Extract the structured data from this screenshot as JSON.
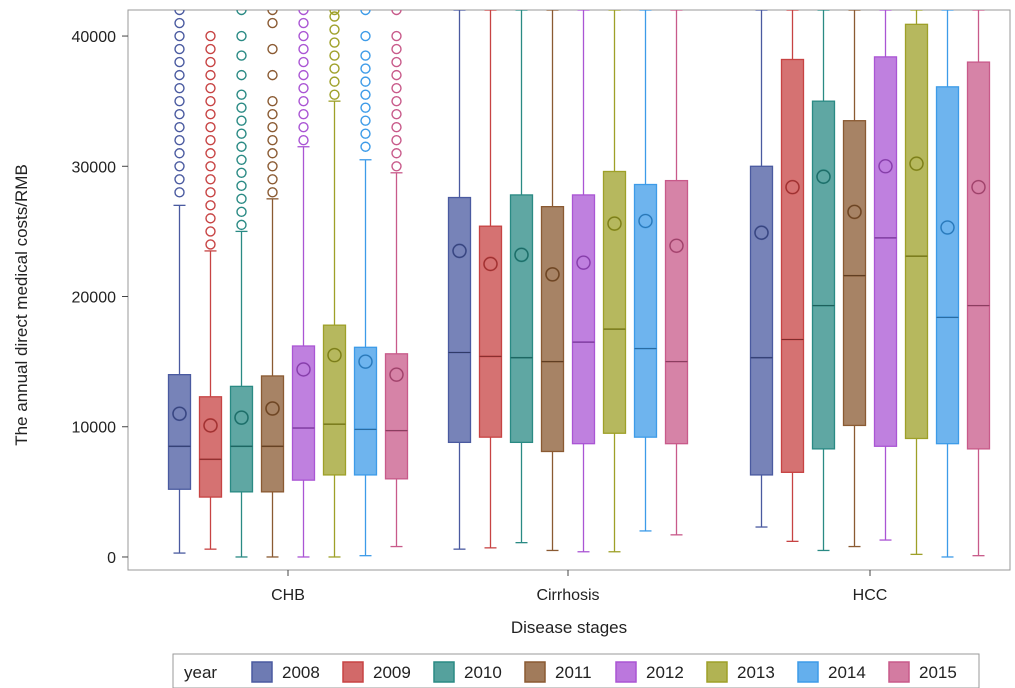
{
  "chart_data": {
    "type": "box",
    "xlabel": "Disease stages",
    "ylabel": "The annual direct medical costs/RMB",
    "ylim": [
      -1000,
      42000
    ],
    "yticks": [
      0,
      10000,
      20000,
      30000,
      40000
    ],
    "grid": false,
    "legend": {
      "title": "year",
      "placement": "bottom"
    },
    "categories": [
      "CHB",
      "Cirrhosis",
      "HCC"
    ],
    "series": [
      {
        "name": "2008",
        "color": "#4a5aa0",
        "boxes": [
          {
            "min": 300,
            "q1": 5200,
            "median": 8500,
            "q3": 14000,
            "max": 27000,
            "mean": 11000,
            "outliers": [
              28000,
              29000,
              30000,
              31000,
              32000,
              33000,
              34000,
              35000,
              36000,
              37000,
              38000,
              39000,
              40000,
              41000,
              42000
            ]
          },
          {
            "min": 600,
            "q1": 8800,
            "median": 15700,
            "q3": 27600,
            "max": 42000,
            "mean": 23500,
            "outliers": []
          },
          {
            "min": 2300,
            "q1": 6300,
            "median": 15300,
            "q3": 30000,
            "max": 42000,
            "mean": 24900,
            "outliers": []
          }
        ]
      },
      {
        "name": "2009",
        "color": "#c74343",
        "boxes": [
          {
            "min": 600,
            "q1": 4600,
            "median": 7500,
            "q3": 12300,
            "max": 23500,
            "mean": 10100,
            "outliers": [
              24000,
              25000,
              26000,
              27000,
              28000,
              29000,
              30000,
              31000,
              32000,
              33000,
              34000,
              35000,
              36000,
              37000,
              38000,
              39000,
              40000
            ]
          },
          {
            "min": 700,
            "q1": 9200,
            "median": 15400,
            "q3": 25400,
            "max": 42000,
            "mean": 22500,
            "outliers": []
          },
          {
            "min": 1200,
            "q1": 6500,
            "median": 16700,
            "q3": 38200,
            "max": 42000,
            "mean": 28400,
            "outliers": []
          }
        ]
      },
      {
        "name": "2010",
        "color": "#2a8a84",
        "boxes": [
          {
            "min": 0,
            "q1": 5000,
            "median": 8500,
            "q3": 13100,
            "max": 25000,
            "mean": 10700,
            "outliers": [
              25500,
              26500,
              27500,
              28500,
              29500,
              30500,
              31500,
              32500,
              33500,
              34500,
              35500,
              37000,
              38500,
              40000,
              42000
            ]
          },
          {
            "min": 1100,
            "q1": 8800,
            "median": 15300,
            "q3": 27800,
            "max": 42000,
            "mean": 23200,
            "outliers": []
          },
          {
            "min": 500,
            "q1": 8300,
            "median": 19300,
            "q3": 35000,
            "max": 42000,
            "mean": 29200,
            "outliers": []
          }
        ]
      },
      {
        "name": "2011",
        "color": "#8a5a32",
        "boxes": [
          {
            "min": 0,
            "q1": 5000,
            "median": 8500,
            "q3": 13900,
            "max": 27500,
            "mean": 11400,
            "outliers": [
              28000,
              29000,
              30000,
              31000,
              32000,
              33000,
              34000,
              35000,
              37000,
              39000,
              41000,
              42000
            ]
          },
          {
            "min": 500,
            "q1": 8100,
            "median": 15000,
            "q3": 26900,
            "max": 42000,
            "mean": 21700,
            "outliers": []
          },
          {
            "min": 800,
            "q1": 10100,
            "median": 21600,
            "q3": 33500,
            "max": 42000,
            "mean": 26500,
            "outliers": []
          }
        ]
      },
      {
        "name": "2012",
        "color": "#aa55d4",
        "boxes": [
          {
            "min": 0,
            "q1": 5900,
            "median": 9900,
            "q3": 16200,
            "max": 31500,
            "mean": 14400,
            "outliers": [
              32000,
              33000,
              34000,
              35000,
              36000,
              37000,
              38000,
              39000,
              40000,
              41000,
              42000
            ]
          },
          {
            "min": 400,
            "q1": 8700,
            "median": 16500,
            "q3": 27800,
            "max": 42000,
            "mean": 22600,
            "outliers": []
          },
          {
            "min": 1300,
            "q1": 8500,
            "median": 24500,
            "q3": 38400,
            "max": 42000,
            "mean": 30000,
            "outliers": []
          }
        ]
      },
      {
        "name": "2013",
        "color": "#9ea028",
        "boxes": [
          {
            "min": 0,
            "q1": 6300,
            "median": 10200,
            "q3": 17800,
            "max": 35000,
            "mean": 15500,
            "outliers": [
              35500,
              36500,
              37500,
              38500,
              39500,
              40500,
              41500,
              42000
            ]
          },
          {
            "min": 400,
            "q1": 9500,
            "median": 17500,
            "q3": 29600,
            "max": 42000,
            "mean": 25600,
            "outliers": []
          },
          {
            "min": 200,
            "q1": 9100,
            "median": 23100,
            "q3": 40900,
            "max": 42000,
            "mean": 30200,
            "outliers": []
          }
        ]
      },
      {
        "name": "2014",
        "color": "#3d9be8",
        "boxes": [
          {
            "min": 100,
            "q1": 6300,
            "median": 9800,
            "q3": 16100,
            "max": 30500,
            "mean": 15000,
            "outliers": [
              31500,
              32500,
              33500,
              34500,
              35500,
              36500,
              37500,
              38500,
              40000,
              42000
            ]
          },
          {
            "min": 2000,
            "q1": 9200,
            "median": 16000,
            "q3": 28600,
            "max": 42000,
            "mean": 25800,
            "outliers": []
          },
          {
            "min": 0,
            "q1": 8700,
            "median": 18400,
            "q3": 36100,
            "max": 42000,
            "mean": 25300,
            "outliers": []
          }
        ]
      },
      {
        "name": "2015",
        "color": "#c85a8a",
        "boxes": [
          {
            "min": 800,
            "q1": 6000,
            "median": 9700,
            "q3": 15600,
            "max": 29500,
            "mean": 14000,
            "outliers": [
              30000,
              31000,
              32000,
              33000,
              34000,
              35000,
              36000,
              37000,
              38000,
              39000,
              40000,
              42000
            ]
          },
          {
            "min": 1700,
            "q1": 8700,
            "median": 15000,
            "q3": 28900,
            "max": 42000,
            "mean": 23900,
            "outliers": []
          },
          {
            "min": 100,
            "q1": 8300,
            "median": 19300,
            "q3": 38000,
            "max": 42000,
            "mean": 28400,
            "outliers": []
          }
        ]
      }
    ]
  }
}
